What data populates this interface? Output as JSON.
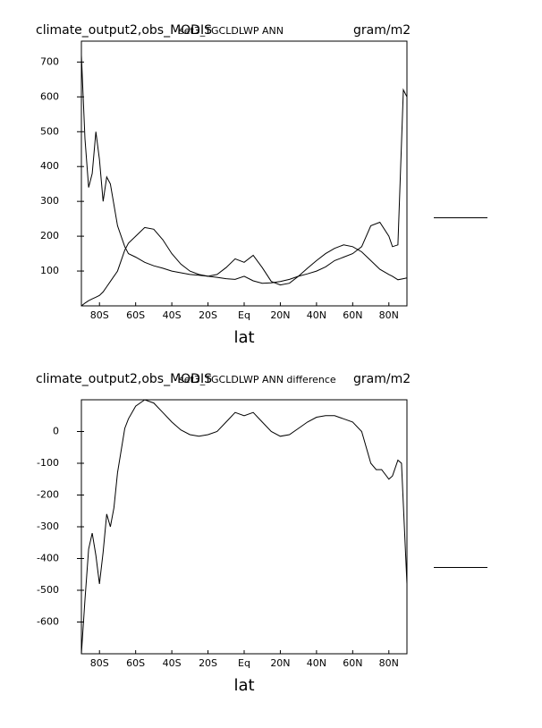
{
  "chart_data": [
    {
      "type": "line",
      "title": "climate_output2,obs_MODIS",
      "subtitle": "set3_TGCLDLWP ANN",
      "units": "gram/m2",
      "x_label": "lat",
      "x": [
        -90,
        -88,
        -86,
        -84,
        -82,
        -80,
        -78,
        -76,
        -74,
        -70,
        -66,
        -64,
        -60,
        -55,
        -50,
        -45,
        -40,
        -35,
        -30,
        -25,
        -20,
        -15,
        -10,
        -5,
        0,
        5,
        10,
        15,
        20,
        25,
        30,
        35,
        40,
        45,
        50,
        55,
        60,
        65,
        70,
        75,
        80,
        82,
        85,
        88,
        90
      ],
      "series": [
        {
          "color": "#000000",
          "values": [
            720,
            480,
            340,
            380,
            500,
            420,
            300,
            370,
            350,
            230,
            170,
            150,
            140,
            125,
            115,
            108,
            100,
            95,
            90,
            88,
            85,
            82,
            78,
            76,
            85,
            72,
            65,
            66,
            70,
            76,
            85,
            92,
            100,
            112,
            130,
            140,
            150,
            170,
            230,
            240,
            200,
            170,
            175,
            620,
            600
          ]
        },
        {
          "color": "#000000",
          "values": [
            0,
            8,
            15,
            20,
            25,
            30,
            40,
            55,
            70,
            100,
            160,
            180,
            200,
            225,
            220,
            190,
            150,
            120,
            100,
            90,
            85,
            90,
            110,
            135,
            125,
            145,
            110,
            70,
            60,
            65,
            85,
            108,
            130,
            150,
            165,
            175,
            170,
            155,
            130,
            105,
            90,
            85,
            75,
            78,
            80
          ]
        }
      ],
      "xlim": [
        -90,
        90
      ],
      "ylim": [
        0,
        760
      ],
      "xticks": [
        {
          "value": -80,
          "label": "80S"
        },
        {
          "value": -60,
          "label": "60S"
        },
        {
          "value": -40,
          "label": "40S"
        },
        {
          "value": -20,
          "label": "20S"
        },
        {
          "value": 0,
          "label": "Eq"
        },
        {
          "value": 20,
          "label": "20N"
        },
        {
          "value": 40,
          "label": "40N"
        },
        {
          "value": 60,
          "label": "60N"
        },
        {
          "value": 80,
          "label": "80N"
        }
      ],
      "yticks": [
        100,
        200,
        300,
        400,
        500,
        600,
        700
      ]
    },
    {
      "type": "line",
      "title": "climate_output2,obs_MODIS",
      "subtitle": "set3_TGCLDLWP ANN difference",
      "units": "gram/m2",
      "x_label": "lat",
      "x": [
        -90,
        -88,
        -86,
        -84,
        -82,
        -80,
        -78,
        -76,
        -74,
        -72,
        -70,
        -66,
        -64,
        -60,
        -55,
        -50,
        -45,
        -40,
        -35,
        -30,
        -25,
        -20,
        -15,
        -10,
        -5,
        0,
        5,
        10,
        15,
        20,
        25,
        30,
        35,
        40,
        45,
        50,
        55,
        60,
        65,
        70,
        73,
        76,
        80,
        82,
        85,
        87,
        90
      ],
      "series": [
        {
          "color": "#000000",
          "values": [
            -700,
            -530,
            -370,
            -320,
            -390,
            -480,
            -380,
            -260,
            -300,
            -240,
            -130,
            10,
            40,
            80,
            100,
            90,
            60,
            30,
            5,
            -10,
            -15,
            -10,
            0,
            30,
            60,
            50,
            60,
            30,
            0,
            -15,
            -10,
            10,
            30,
            45,
            50,
            50,
            40,
            30,
            0,
            -100,
            -120,
            -120,
            -150,
            -140,
            -90,
            -100,
            -480
          ]
        }
      ],
      "xlim": [
        -90,
        90
      ],
      "ylim": [
        -700,
        100
      ],
      "xticks": [
        {
          "value": -80,
          "label": "80S"
        },
        {
          "value": -60,
          "label": "60S"
        },
        {
          "value": -40,
          "label": "40S"
        },
        {
          "value": -20,
          "label": "20S"
        },
        {
          "value": 0,
          "label": "Eq"
        },
        {
          "value": 20,
          "label": "20N"
        },
        {
          "value": 40,
          "label": "40N"
        },
        {
          "value": 60,
          "label": "60N"
        },
        {
          "value": 80,
          "label": "80N"
        }
      ],
      "yticks": [
        -600,
        -500,
        -400,
        -300,
        -200,
        -100,
        0
      ]
    }
  ]
}
